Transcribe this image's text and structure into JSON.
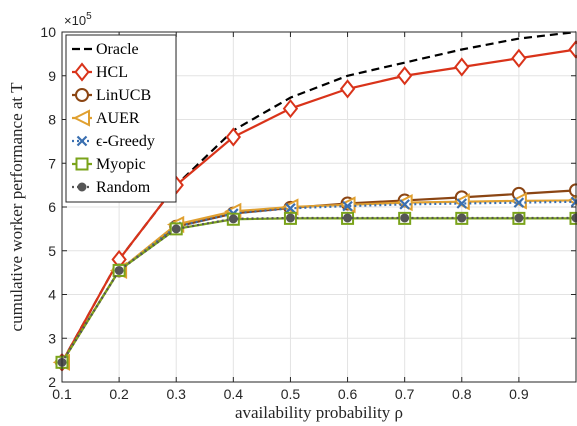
{
  "chart_data": {
    "type": "line",
    "title": "",
    "xlabel": "availability probability ρ",
    "ylabel": "cumulative worker performance at T",
    "y_multiplier_label": "×10",
    "y_multiplier_exp": "5",
    "xlim": [
      0.1,
      1.0
    ],
    "ylim": [
      2,
      10
    ],
    "x_ticks": [
      "0.1",
      "0.2",
      "0.3",
      "0.4",
      "0.5",
      "0.6",
      "0.7",
      "0.8",
      "0.9"
    ],
    "y_ticks": [
      "2",
      "3",
      "4",
      "5",
      "6",
      "7",
      "8",
      "9",
      "10"
    ],
    "x": [
      0.1,
      0.2,
      0.3,
      0.4,
      0.5,
      0.6,
      0.7,
      0.8,
      0.9,
      1.0
    ],
    "grid": true,
    "legend_position": "top-left",
    "series": [
      {
        "name": "Oracle",
        "color": "#000000",
        "marker": "none",
        "dash": "dashed",
        "values": [
          2.45,
          4.8,
          6.5,
          7.75,
          8.5,
          9.0,
          9.3,
          9.6,
          9.85,
          10.0
        ]
      },
      {
        "name": "HCL",
        "color": "#d9331a",
        "marker": "diamond",
        "values": [
          2.45,
          4.8,
          6.5,
          7.6,
          8.25,
          8.7,
          9.0,
          9.2,
          9.4,
          9.6
        ]
      },
      {
        "name": "LinUCB",
        "color": "#8b4513",
        "marker": "circle",
        "values": [
          2.45,
          4.55,
          5.55,
          5.85,
          5.98,
          6.08,
          6.15,
          6.22,
          6.3,
          6.38
        ]
      },
      {
        "name": "AUER",
        "color": "#e0a030",
        "marker": "triangle-left",
        "values": [
          2.45,
          4.55,
          5.6,
          5.9,
          6.0,
          6.05,
          6.1,
          6.12,
          6.14,
          6.15
        ]
      },
      {
        "name": "ϵ-Greedy",
        "color": "#3a6fb0",
        "marker": "x",
        "dash": "dotted",
        "values": [
          2.45,
          4.55,
          5.55,
          5.85,
          5.97,
          6.02,
          6.06,
          6.08,
          6.1,
          6.12
        ]
      },
      {
        "name": "Myopic",
        "color": "#7aa31a",
        "marker": "square",
        "values": [
          2.45,
          4.55,
          5.5,
          5.72,
          5.74,
          5.74,
          5.74,
          5.74,
          5.74,
          5.74
        ]
      },
      {
        "name": "Random",
        "color": "#555555",
        "marker": "dot",
        "dash": "dotted",
        "values": [
          2.45,
          4.55,
          5.5,
          5.73,
          5.75,
          5.75,
          5.75,
          5.75,
          5.75,
          5.75
        ]
      }
    ]
  }
}
